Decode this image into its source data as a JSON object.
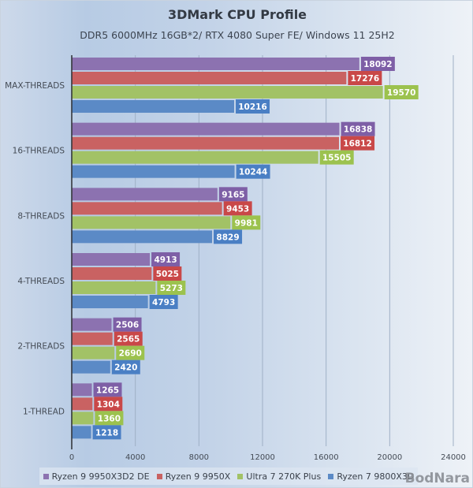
{
  "chart_data": {
    "type": "bar",
    "orientation": "horizontal",
    "title": "3DMark CPU Profile",
    "subtitle": "DDR5 6000MHz 16GB*2/ RTX 4080 Super FE/ Windows 11 25H2",
    "xlabel": "",
    "ylabel": "",
    "xlim": [
      0,
      24000
    ],
    "xticks": [
      0,
      4000,
      8000,
      12000,
      16000,
      20000,
      24000
    ],
    "xtick_labels": [
      "0",
      "4000",
      "8000",
      "12000",
      "16000",
      "20000",
      "24000"
    ],
    "grid": "vertical",
    "legend_position": "bottom",
    "categories": [
      "MAX-THREADS",
      "16-THREADS",
      "8-THREADS",
      "4-THREADS",
      "2-THREADS",
      "1-THREAD"
    ],
    "series": [
      {
        "name": "Ryzen 9 9950X3D2 DE",
        "color": "#8c72b0",
        "label_color": "#7e5fa6",
        "values": [
          18092,
          16838,
          9165,
          4913,
          2506,
          1265
        ]
      },
      {
        "name": "Ryzen 9 9950X",
        "color": "#c96262",
        "label_color": "#c94848",
        "values": [
          17276,
          16812,
          9453,
          5025,
          2565,
          1304
        ]
      },
      {
        "name": "Ultra 7 270K Plus",
        "color": "#a2c266",
        "label_color": "#9cc24e",
        "values": [
          19570,
          15505,
          9981,
          5273,
          2690,
          1360
        ]
      },
      {
        "name": "Ryzen 7 9800X3D",
        "color": "#5b8ac6",
        "label_color": "#4a7fc4",
        "values": [
          10216,
          10244,
          8829,
          4793,
          2420,
          1218
        ]
      }
    ]
  },
  "watermark": "BodNara"
}
